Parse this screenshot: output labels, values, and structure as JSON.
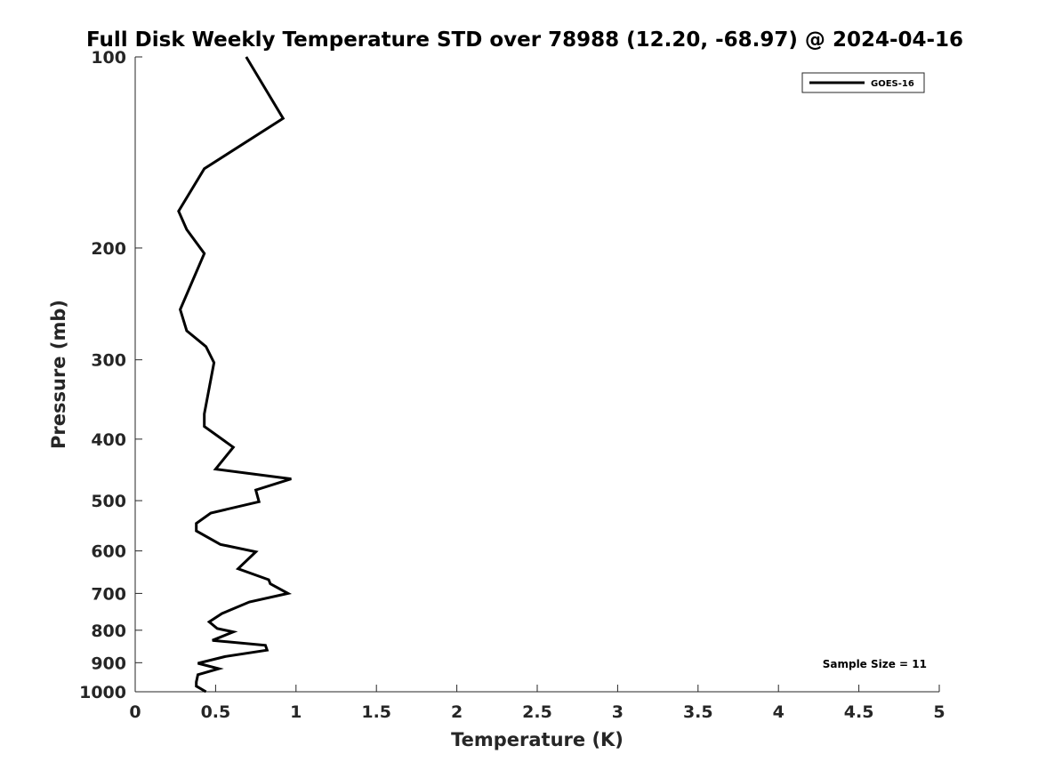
{
  "chart_data": {
    "type": "line",
    "title": "Full Disk Weekly Temperature STD over 78988 (12.20, -68.97) @ 2024-04-16",
    "xlabel": "Temperature (K)",
    "ylabel": "Pressure (mb)",
    "xlim": [
      0,
      5
    ],
    "ylim": [
      100,
      1000
    ],
    "yscale": "log",
    "y_reversed": true,
    "x_ticks": [
      "0",
      "0.5",
      "1",
      "1.5",
      "2",
      "2.5",
      "3",
      "3.5",
      "4",
      "4.5",
      "5"
    ],
    "y_ticks": [
      "100",
      "200",
      "300",
      "400",
      "500",
      "600",
      "700",
      "800",
      "900",
      "1000"
    ],
    "grid": false,
    "legend_position": "top-right",
    "annotation": "Sample Size = 11",
    "series": [
      {
        "name": "GOES-16",
        "color": "#000000",
        "points": [
          [
            0.69,
            100
          ],
          [
            0.92,
            125
          ],
          [
            0.43,
            150
          ],
          [
            0.27,
            175
          ],
          [
            0.32,
            187
          ],
          [
            0.43,
            204
          ],
          [
            0.28,
            250
          ],
          [
            0.32,
            270
          ],
          [
            0.44,
            286
          ],
          [
            0.49,
            303
          ],
          [
            0.43,
            365
          ],
          [
            0.43,
            382
          ],
          [
            0.61,
            412
          ],
          [
            0.5,
            446
          ],
          [
            0.97,
            462
          ],
          [
            0.75,
            481
          ],
          [
            0.77,
            502
          ],
          [
            0.47,
            523
          ],
          [
            0.38,
            543
          ],
          [
            0.38,
            558
          ],
          [
            0.53,
            586
          ],
          [
            0.75,
            602
          ],
          [
            0.64,
            640
          ],
          [
            0.83,
            666
          ],
          [
            0.84,
            676
          ],
          [
            0.95,
            700
          ],
          [
            0.71,
            722
          ],
          [
            0.54,
            753
          ],
          [
            0.46,
            776
          ],
          [
            0.51,
            795
          ],
          [
            0.61,
            805
          ],
          [
            0.48,
            830
          ],
          [
            0.81,
            845
          ],
          [
            0.82,
            860
          ],
          [
            0.56,
            880
          ],
          [
            0.39,
            902
          ],
          [
            0.52,
            920
          ],
          [
            0.39,
            940
          ],
          [
            0.38,
            965
          ],
          [
            0.38,
            980
          ],
          [
            0.44,
            1000
          ]
        ]
      }
    ]
  }
}
